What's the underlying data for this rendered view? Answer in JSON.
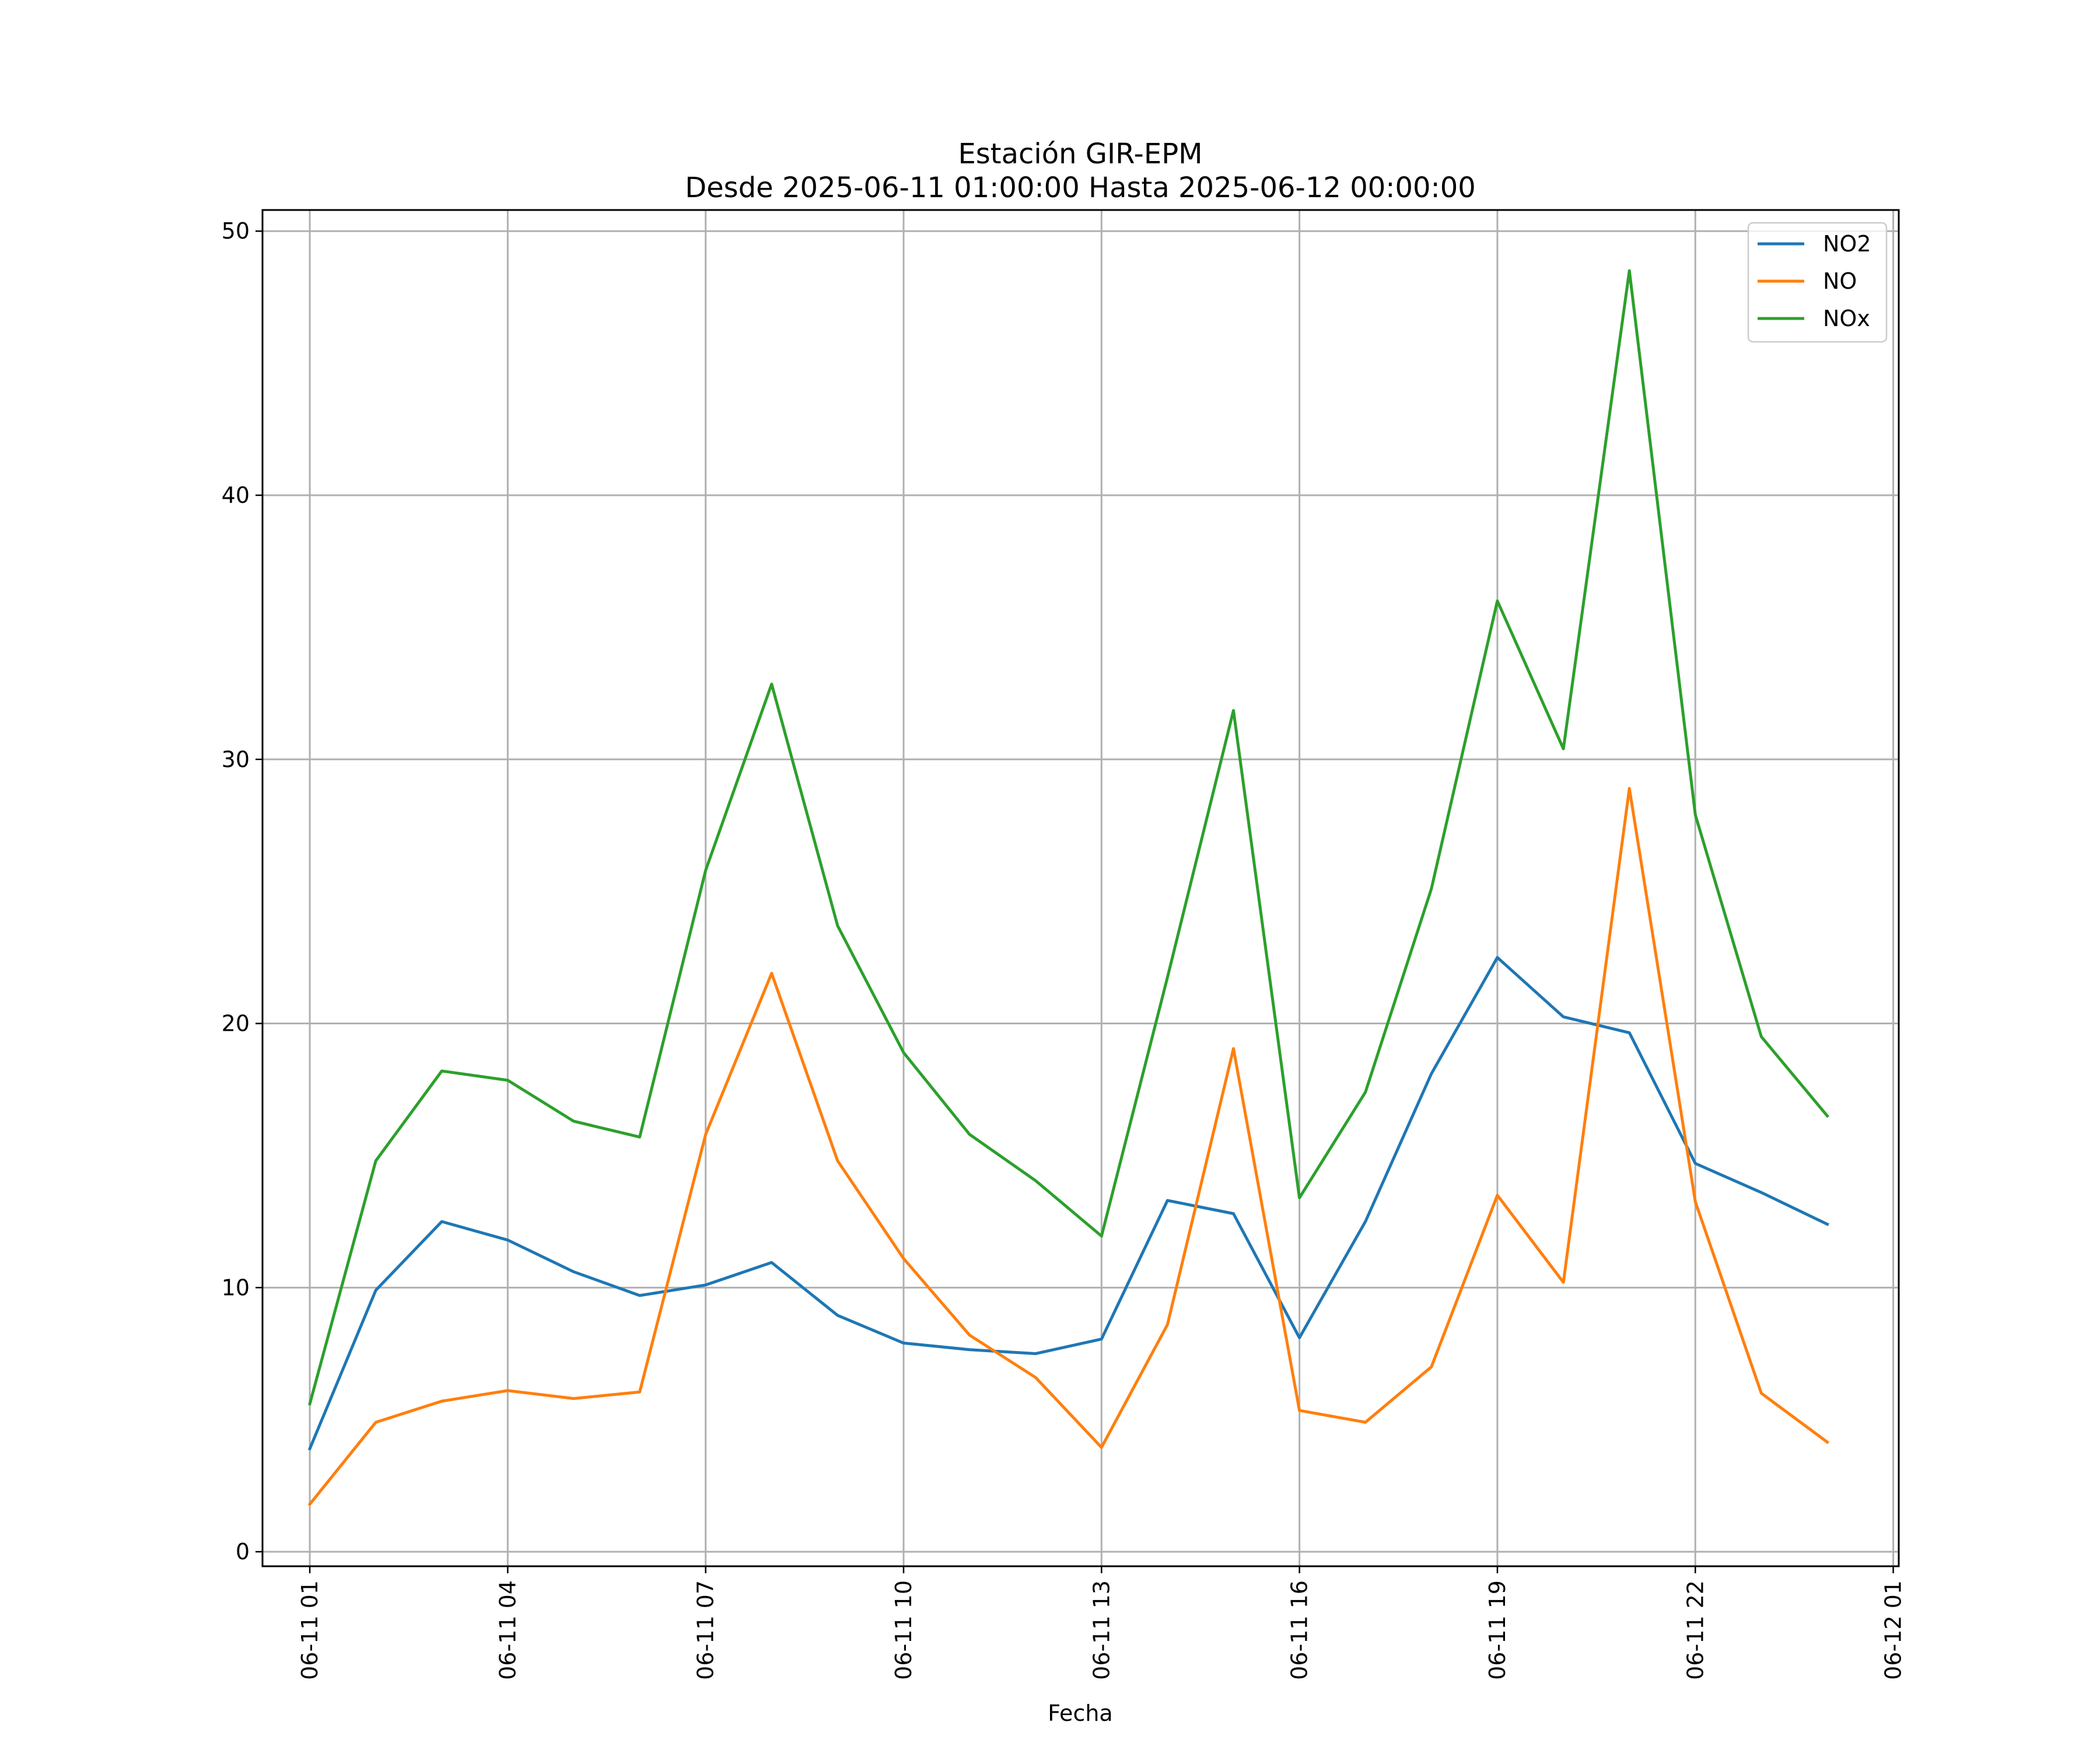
{
  "chart_data": {
    "type": "line",
    "title": "Estación GIR-EPM",
    "subtitle": "Desde 2025-06-11 01:00:00 Hasta 2025-06-12 00:00:00",
    "xlabel": "Fecha",
    "ylabel": "",
    "x": [
      "06-11 01",
      "06-11 02",
      "06-11 03",
      "06-11 04",
      "06-11 05",
      "06-11 06",
      "06-11 07",
      "06-11 08",
      "06-11 09",
      "06-11 10",
      "06-11 11",
      "06-11 12",
      "06-11 13",
      "06-11 14",
      "06-11 15",
      "06-11 16",
      "06-11 17",
      "06-11 18",
      "06-11 19",
      "06-11 20",
      "06-11 21",
      "06-11 22",
      "06-11 23",
      "06-12 00"
    ],
    "x_tick_labels": [
      "06-11 01",
      "06-11 04",
      "06-11 07",
      "06-11 10",
      "06-11 13",
      "06-11 16",
      "06-11 19",
      "06-11 22",
      "06-12 01"
    ],
    "y_tick_labels": [
      "0",
      "10",
      "20",
      "30",
      "40",
      "50"
    ],
    "xlim": [
      "2025-06-11 00:17",
      "2025-06-12 01:05"
    ],
    "ylim": [
      -0.55,
      50.8
    ],
    "grid": true,
    "legend_position": "top-right",
    "series": [
      {
        "name": "NO2",
        "color": "#1f77b4",
        "values": [
          3.9,
          9.9,
          12.5,
          11.8,
          10.6,
          9.7,
          10.1,
          10.95,
          8.95,
          7.9,
          7.65,
          7.5,
          8.05,
          13.3,
          12.8,
          8.1,
          12.5,
          18.1,
          22.5,
          20.25,
          19.65,
          14.7,
          13.6,
          12.4
        ]
      },
      {
        "name": "NO",
        "color": "#ff7f0e",
        "values": [
          1.8,
          4.9,
          5.7,
          6.1,
          5.8,
          6.05,
          15.8,
          21.9,
          14.8,
          11.1,
          8.2,
          6.6,
          3.95,
          8.6,
          19.05,
          5.35,
          4.9,
          7.0,
          13.5,
          10.2,
          28.9,
          13.25,
          6.0,
          4.15
        ]
      },
      {
        "name": "NOx",
        "color": "#2ca02c",
        "values": [
          5.6,
          14.8,
          18.2,
          17.85,
          16.3,
          15.7,
          25.8,
          32.85,
          23.7,
          18.9,
          15.8,
          14.05,
          11.95,
          21.75,
          31.85,
          13.4,
          17.4,
          25.1,
          36.0,
          30.4,
          48.5,
          27.9,
          19.5,
          16.5
        ]
      }
    ]
  }
}
